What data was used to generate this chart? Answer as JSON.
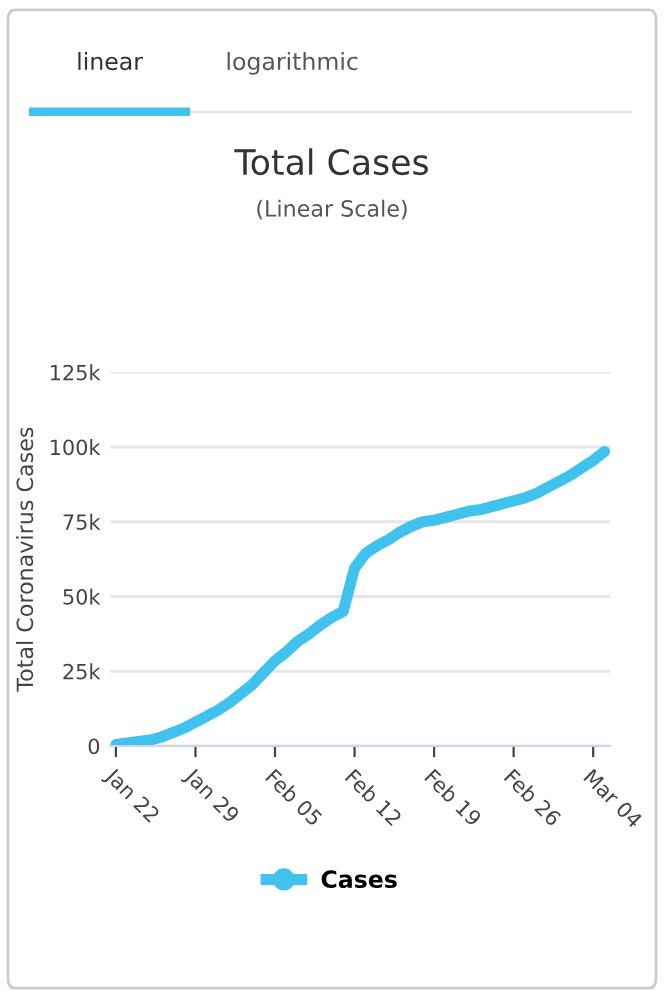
{
  "chart_data": {
    "type": "line",
    "title": "Total Cases",
    "subtitle": "(Linear Scale)",
    "ylabel": "Total Coronavirus Cases",
    "annotations": [
      "linear",
      "logarithmic"
    ],
    "categories": [
      "Jan 22",
      null,
      null,
      null,
      null,
      null,
      null,
      "Jan 29",
      null,
      null,
      null,
      null,
      null,
      null,
      "Feb 05",
      null,
      null,
      null,
      null,
      null,
      null,
      "Feb 12",
      null,
      null,
      null,
      null,
      null,
      null,
      "Feb 19",
      null,
      null,
      null,
      null,
      null,
      null,
      "Feb 26",
      null,
      null,
      null,
      null,
      null,
      null,
      "Mar 04",
      null
    ],
    "series": [
      {
        "name": "Cases",
        "color": "#3fc3ee",
        "values": [
          500,
          1000,
          1500,
          2000,
          3000,
          4500,
          6000,
          8000,
          10000,
          12000,
          14500,
          17500,
          20500,
          24500,
          28500,
          31500,
          35000,
          37500,
          40500,
          43000,
          45000,
          59500,
          64500,
          67000,
          69000,
          71500,
          73500,
          75000,
          75500,
          76500,
          77500,
          78500,
          79000,
          80000,
          81000,
          82000,
          83000,
          84500,
          86500,
          88500,
          90500,
          93000,
          95500,
          98500
        ]
      }
    ],
    "ylim": [
      0,
      125000
    ],
    "yticks": [
      0,
      {
        "value": 25000,
        "label": "25k"
      },
      {
        "value": 50000,
        "label": "50k"
      },
      {
        "value": 75000,
        "label": "75k"
      },
      {
        "value": 100000,
        "label": "100k"
      },
      {
        "value": 125000,
        "label": "125k"
      }
    ],
    "grid": "y",
    "legend": "bottom",
    "line_style": "solid"
  }
}
